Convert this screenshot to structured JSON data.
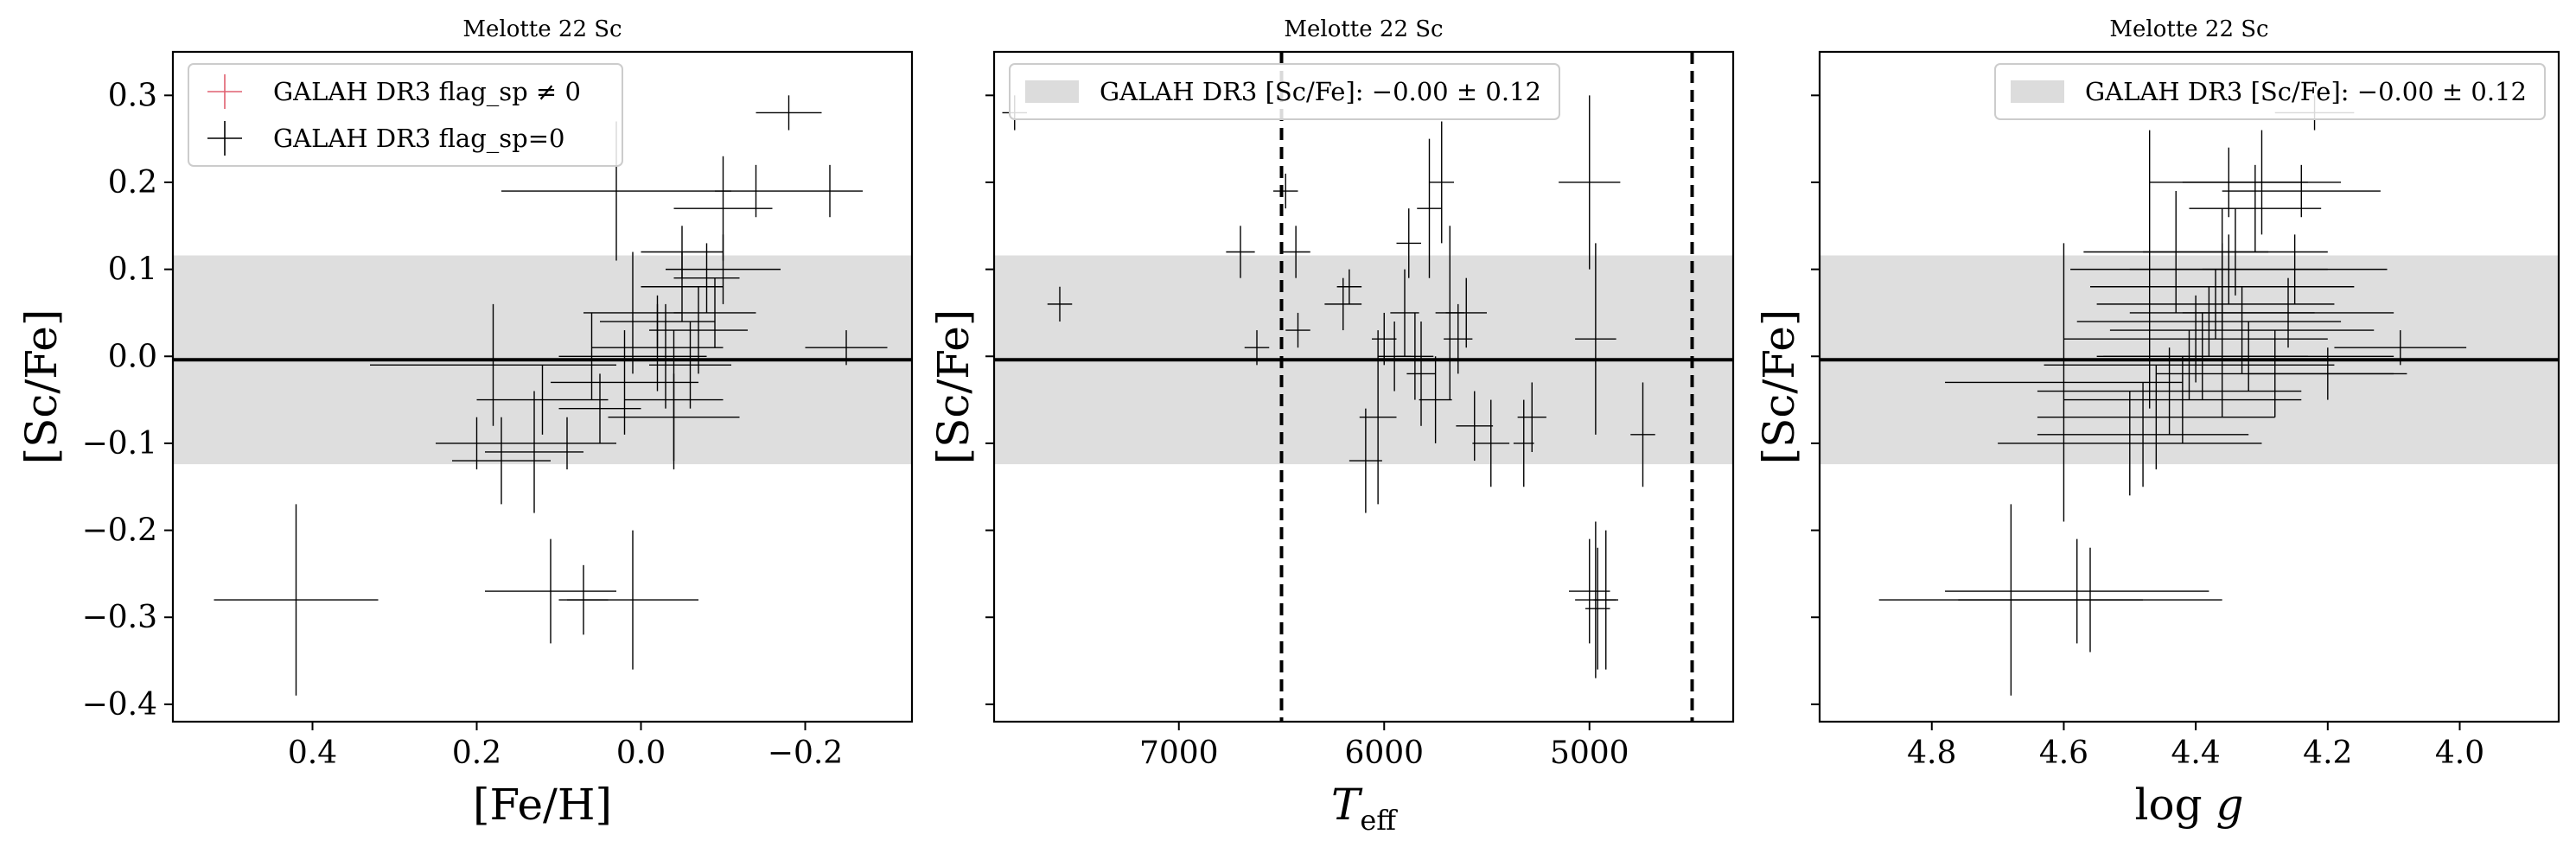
{
  "chart_data": [
    {
      "type": "scatter",
      "title": "Melotte 22 Sc",
      "xlabel": "[Fe/H]",
      "ylabel": "[Sc/Fe]",
      "xlim": [
        0.57,
        -0.33
      ],
      "ylim": [
        -0.42,
        0.35
      ],
      "xticks": [
        0.4,
        0.2,
        0.0,
        -0.2
      ],
      "xtick_labels": [
        "0.4",
        "0.2",
        "0.0",
        "−0.2"
      ],
      "yticks": [
        0.3,
        0.2,
        0.1,
        0.0,
        -0.1,
        -0.2,
        -0.3,
        -0.4
      ],
      "ytick_labels": [
        "0.3",
        "0.2",
        "0.1",
        "0.0",
        "−0.1",
        "−0.2",
        "−0.3",
        "−0.4"
      ],
      "show_ytick_labels": true,
      "mean_line": -0.004,
      "band": [
        -0.124,
        0.116
      ],
      "legend": {
        "position": "upper-left",
        "entries": [
          {
            "marker": "cross",
            "color": "#e06070",
            "label": "GALAH DR3 flag_sp ≠ 0"
          },
          {
            "marker": "cross",
            "color": "#000000",
            "label": "GALAH DR3 flag_sp=0"
          }
        ]
      },
      "series": [
        {
          "name": "GALAH DR3 flag_sp=0",
          "color": "#000000",
          "points": [
            {
              "x": 0.42,
              "y": -0.28,
              "xerr": 0.1,
              "yerr": 0.11
            },
            {
              "x": 0.11,
              "y": -0.27,
              "xerr": 0.08,
              "yerr": 0.06
            },
            {
              "x": 0.07,
              "y": -0.28,
              "xerr": 0.03,
              "yerr": 0.04
            },
            {
              "x": 0.01,
              "y": -0.28,
              "xerr": 0.08,
              "yerr": 0.08
            },
            {
              "x": 0.18,
              "y": -0.01,
              "xerr": 0.15,
              "yerr": 0.07
            },
            {
              "x": 0.2,
              "y": -0.1,
              "xerr": 0.05,
              "yerr": 0.03
            },
            {
              "x": 0.17,
              "y": -0.12,
              "xerr": 0.06,
              "yerr": 0.05
            },
            {
              "x": 0.13,
              "y": -0.11,
              "xerr": 0.06,
              "yerr": 0.07
            },
            {
              "x": 0.09,
              "y": -0.1,
              "xerr": 0.06,
              "yerr": 0.03
            },
            {
              "x": 0.12,
              "y": -0.05,
              "xerr": 0.08,
              "yerr": 0.04
            },
            {
              "x": 0.05,
              "y": -0.06,
              "xerr": 0.05,
              "yerr": 0.04
            },
            {
              "x": -0.04,
              "y": -0.07,
              "xerr": 0.08,
              "yerr": 0.05
            },
            {
              "x": 0.02,
              "y": -0.03,
              "xerr": 0.09,
              "yerr": 0.06
            },
            {
              "x": -0.02,
              "y": 0.01,
              "xerr": 0.08,
              "yerr": 0.05
            },
            {
              "x": 0.01,
              "y": 0.05,
              "xerr": 0.06,
              "yerr": 0.07
            },
            {
              "x": -0.02,
              "y": 0.04,
              "xerr": 0.07,
              "yerr": 0.03
            },
            {
              "x": -0.05,
              "y": 0.08,
              "xerr": 0.05,
              "yerr": 0.04
            },
            {
              "x": -0.07,
              "y": 0.03,
              "xerr": 0.06,
              "yerr": 0.05
            },
            {
              "x": -0.08,
              "y": 0.09,
              "xerr": 0.04,
              "yerr": 0.04
            },
            {
              "x": -0.05,
              "y": 0.12,
              "xerr": 0.05,
              "yerr": 0.03
            },
            {
              "x": -0.03,
              "y": 0.0,
              "xerr": 0.05,
              "yerr": 0.06
            },
            {
              "x": -0.06,
              "y": -0.01,
              "xerr": 0.05,
              "yerr": 0.05
            },
            {
              "x": -0.1,
              "y": 0.17,
              "xerr": 0.06,
              "yerr": 0.06
            },
            {
              "x": -0.14,
              "y": 0.19,
              "xerr": 0.05,
              "yerr": 0.03
            },
            {
              "x": -0.1,
              "y": 0.1,
              "xerr": 0.07,
              "yerr": 0.04
            },
            {
              "x": 0.03,
              "y": 0.19,
              "xerr": 0.14,
              "yerr": 0.08
            },
            {
              "x": -0.18,
              "y": 0.28,
              "xerr": 0.04,
              "yerr": 0.02
            },
            {
              "x": -0.23,
              "y": 0.19,
              "xerr": 0.04,
              "yerr": 0.03
            },
            {
              "x": -0.25,
              "y": 0.01,
              "xerr": 0.05,
              "yerr": 0.02
            },
            {
              "x": -0.09,
              "y": 0.05,
              "xerr": 0.05,
              "yerr": 0.04
            },
            {
              "x": 0.06,
              "y": 0.0,
              "xerr": 0.04,
              "yerr": 0.05
            },
            {
              "x": -0.04,
              "y": -0.05,
              "xerr": 0.06,
              "yerr": 0.08
            }
          ]
        }
      ]
    },
    {
      "type": "scatter",
      "title": "Melotte 22 Sc",
      "xlabel": "Teff",
      "ylabel": "[Sc/Fe]",
      "xlim": [
        7900,
        4300
      ],
      "ylim": [
        -0.42,
        0.35
      ],
      "xticks": [
        7000,
        6000,
        5000
      ],
      "xtick_labels": [
        "7000",
        "6000",
        "5000"
      ],
      "yticks": [
        0.3,
        0.2,
        0.1,
        0.0,
        -0.1,
        -0.2,
        -0.3,
        -0.4
      ],
      "ytick_labels": [],
      "show_ytick_labels": false,
      "mean_line": -0.004,
      "band": [
        -0.124,
        0.116
      ],
      "vlines": [
        6500,
        4500
      ],
      "legend": {
        "position": "upper-left",
        "entries": [
          {
            "marker": "patch",
            "color": "#dcdcdc",
            "label": "GALAH DR3 [Sc/Fe]: −0.00 ± 0.12"
          }
        ]
      },
      "series": [
        {
          "name": "GALAH DR3 flag_sp=0",
          "color": "#000000",
          "points": [
            {
              "x": 7800,
              "y": 0.28,
              "xerr": 60,
              "yerr": 0.02
            },
            {
              "x": 7580,
              "y": 0.06,
              "xerr": 60,
              "yerr": 0.02
            },
            {
              "x": 6700,
              "y": 0.12,
              "xerr": 70,
              "yerr": 0.03
            },
            {
              "x": 6620,
              "y": 0.01,
              "xerr": 60,
              "yerr": 0.02
            },
            {
              "x": 6480,
              "y": 0.19,
              "xerr": 60,
              "yerr": 0.02
            },
            {
              "x": 6430,
              "y": 0.12,
              "xerr": 70,
              "yerr": 0.03
            },
            {
              "x": 6420,
              "y": 0.03,
              "xerr": 60,
              "yerr": 0.02
            },
            {
              "x": 6200,
              "y": 0.06,
              "xerr": 90,
              "yerr": 0.03
            },
            {
              "x": 6170,
              "y": 0.08,
              "xerr": 60,
              "yerr": 0.02
            },
            {
              "x": 6090,
              "y": -0.12,
              "xerr": 80,
              "yerr": 0.06
            },
            {
              "x": 6030,
              "y": -0.07,
              "xerr": 90,
              "yerr": 0.1
            },
            {
              "x": 6000,
              "y": 0.02,
              "xerr": 60,
              "yerr": 0.03
            },
            {
              "x": 5950,
              "y": 0.0,
              "xerr": 80,
              "yerr": 0.04
            },
            {
              "x": 5900,
              "y": 0.05,
              "xerr": 70,
              "yerr": 0.05
            },
            {
              "x": 5880,
              "y": 0.13,
              "xerr": 60,
              "yerr": 0.04
            },
            {
              "x": 5850,
              "y": 0.0,
              "xerr": 90,
              "yerr": 0.05
            },
            {
              "x": 5820,
              "y": -0.02,
              "xerr": 70,
              "yerr": 0.06
            },
            {
              "x": 5780,
              "y": 0.17,
              "xerr": 60,
              "yerr": 0.08
            },
            {
              "x": 5750,
              "y": -0.05,
              "xerr": 80,
              "yerr": 0.05
            },
            {
              "x": 5720,
              "y": 0.2,
              "xerr": 60,
              "yerr": 0.07
            },
            {
              "x": 5680,
              "y": 0.05,
              "xerr": 70,
              "yerr": 0.1
            },
            {
              "x": 5640,
              "y": 0.02,
              "xerr": 70,
              "yerr": 0.04
            },
            {
              "x": 5600,
              "y": 0.05,
              "xerr": 100,
              "yerr": 0.04
            },
            {
              "x": 5560,
              "y": -0.08,
              "xerr": 90,
              "yerr": 0.04
            },
            {
              "x": 5480,
              "y": -0.1,
              "xerr": 90,
              "yerr": 0.05
            },
            {
              "x": 5320,
              "y": -0.1,
              "xerr": 50,
              "yerr": 0.05
            },
            {
              "x": 5280,
              "y": -0.07,
              "xerr": 70,
              "yerr": 0.04
            },
            {
              "x": 5000,
              "y": 0.2,
              "xerr": 150,
              "yerr": 0.1
            },
            {
              "x": 4970,
              "y": 0.02,
              "xerr": 100,
              "yerr": 0.11
            },
            {
              "x": 5000,
              "y": -0.27,
              "xerr": 100,
              "yerr": 0.06
            },
            {
              "x": 4970,
              "y": -0.28,
              "xerr": 100,
              "yerr": 0.09
            },
            {
              "x": 4960,
              "y": -0.29,
              "xerr": 60,
              "yerr": 0.07
            },
            {
              "x": 4920,
              "y": -0.28,
              "xerr": 60,
              "yerr": 0.08
            },
            {
              "x": 4740,
              "y": -0.09,
              "xerr": 60,
              "yerr": 0.06
            }
          ]
        }
      ]
    },
    {
      "type": "scatter",
      "title": "Melotte 22 Sc",
      "xlabel": "log g",
      "ylabel": "[Sc/Fe]",
      "xlim": [
        4.97,
        3.85
      ],
      "ylim": [
        -0.42,
        0.35
      ],
      "xticks": [
        4.8,
        4.6,
        4.4,
        4.2,
        4.0
      ],
      "xtick_labels": [
        "4.8",
        "4.6",
        "4.4",
        "4.2",
        "4.0"
      ],
      "yticks": [
        0.3,
        0.2,
        0.1,
        0.0,
        -0.1,
        -0.2,
        -0.3,
        -0.4
      ],
      "ytick_labels": [],
      "show_ytick_labels": false,
      "mean_line": -0.004,
      "band": [
        -0.124,
        0.116
      ],
      "legend": {
        "position": "upper-right",
        "entries": [
          {
            "marker": "patch",
            "color": "#dcdcdc",
            "label": "GALAH DR3 [Sc/Fe]: −0.00 ± 0.12"
          }
        ]
      },
      "series": [
        {
          "name": "GALAH DR3 flag_sp=0",
          "color": "#000000",
          "points": [
            {
              "x": 4.68,
              "y": -0.28,
              "xerr": 0.2,
              "yerr": 0.11
            },
            {
              "x": 4.58,
              "y": -0.27,
              "xerr": 0.2,
              "yerr": 0.06
            },
            {
              "x": 4.56,
              "y": -0.28,
              "xerr": 0.2,
              "yerr": 0.06
            },
            {
              "x": 4.6,
              "y": -0.03,
              "xerr": 0.18,
              "yerr": 0.16
            },
            {
              "x": 4.5,
              "y": -0.1,
              "xerr": 0.2,
              "yerr": 0.06
            },
            {
              "x": 4.48,
              "y": -0.09,
              "xerr": 0.16,
              "yerr": 0.06
            },
            {
              "x": 4.46,
              "y": -0.07,
              "xerr": 0.18,
              "yerr": 0.06
            },
            {
              "x": 4.44,
              "y": -0.04,
              "xerr": 0.2,
              "yerr": 0.05
            },
            {
              "x": 4.42,
              "y": -0.05,
              "xerr": 0.18,
              "yerr": 0.05
            },
            {
              "x": 4.41,
              "y": -0.01,
              "xerr": 0.22,
              "yerr": 0.04
            },
            {
              "x": 4.4,
              "y": 0.02,
              "xerr": 0.2,
              "yerr": 0.05
            },
            {
              "x": 4.39,
              "y": 0.0,
              "xerr": 0.16,
              "yerr": 0.05
            },
            {
              "x": 4.38,
              "y": 0.04,
              "xerr": 0.2,
              "yerr": 0.04
            },
            {
              "x": 4.37,
              "y": 0.06,
              "xerr": 0.18,
              "yerr": 0.04
            },
            {
              "x": 4.36,
              "y": 0.08,
              "xerr": 0.2,
              "yerr": 0.05
            },
            {
              "x": 4.35,
              "y": 0.1,
              "xerr": 0.15,
              "yerr": 0.04
            },
            {
              "x": 4.34,
              "y": 0.12,
              "xerr": 0.14,
              "yerr": 0.05
            },
            {
              "x": 4.33,
              "y": 0.03,
              "xerr": 0.2,
              "yerr": 0.05
            },
            {
              "x": 4.32,
              "y": 0.0,
              "xerr": 0.22,
              "yerr": 0.04
            },
            {
              "x": 4.31,
              "y": 0.17,
              "xerr": 0.1,
              "yerr": 0.05
            },
            {
              "x": 4.3,
              "y": 0.2,
              "xerr": 0.12,
              "yerr": 0.06
            },
            {
              "x": 4.28,
              "y": -0.02,
              "xerr": 0.18,
              "yerr": 0.05
            },
            {
              "x": 4.26,
              "y": 0.05,
              "xerr": 0.16,
              "yerr": 0.04
            },
            {
              "x": 4.25,
              "y": 0.1,
              "xerr": 0.14,
              "yerr": 0.04
            },
            {
              "x": 4.24,
              "y": 0.19,
              "xerr": 0.12,
              "yerr": 0.03
            },
            {
              "x": 4.22,
              "y": 0.28,
              "xerr": 0.06,
              "yerr": 0.02
            },
            {
              "x": 4.2,
              "y": -0.02,
              "xerr": 0.12,
              "yerr": 0.03
            },
            {
              "x": 4.09,
              "y": 0.01,
              "xerr": 0.1,
              "yerr": 0.02
            },
            {
              "x": 4.47,
              "y": 0.1,
              "xerr": 0.12,
              "yerr": 0.16
            },
            {
              "x": 4.36,
              "y": 0.05,
              "xerr": 0.14,
              "yerr": 0.12
            },
            {
              "x": 4.43,
              "y": 0.12,
              "xerr": 0.14,
              "yerr": 0.07
            },
            {
              "x": 4.35,
              "y": 0.2,
              "xerr": 0.12,
              "yerr": 0.04
            }
          ]
        }
      ]
    }
  ]
}
